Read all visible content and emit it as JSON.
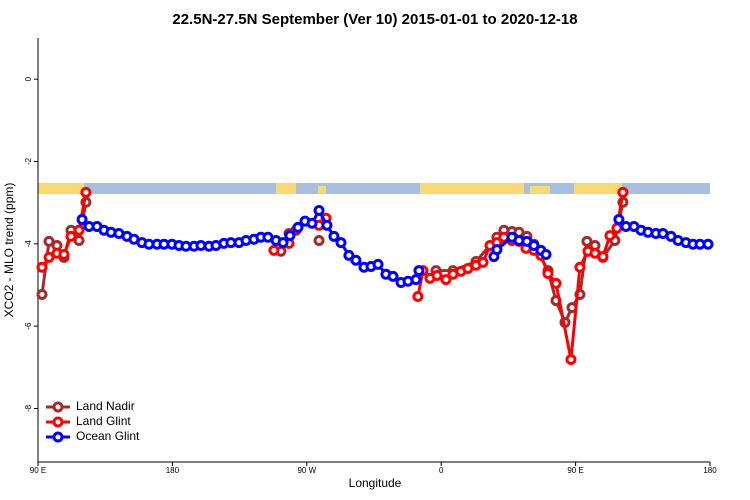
{
  "chart_data": {
    "type": "line",
    "title": "22.5N-27.5N September (Ver 10)   2015-01-01 to 2020-12-18",
    "x_label": "Longitude",
    "y_label": "XCO2 - MLO trend (ppm)",
    "xlim": [
      90,
      540
    ],
    "xticks": [
      {
        "value": 90,
        "label": "90 E"
      },
      {
        "value": 180,
        "label": "180"
      },
      {
        "value": 270,
        "label": "90 W"
      },
      {
        "value": 360,
        "label": "0"
      },
      {
        "value": 450,
        "label": "90 E"
      },
      {
        "value": 540,
        "label": "180"
      }
    ],
    "ylim": [
      -9.3,
      1.0
    ],
    "yticks": [
      0,
      -2,
      -4,
      -6,
      -8
    ],
    "legend": "bottom-left",
    "series": [
      {
        "name": "Land Nadir",
        "color": "#a52a2a",
        "x": [
          92.7,
          97.4,
          102.7,
          107.4,
          112.1,
          117.5,
          122.1,
          200,
          252.7,
          258.1,
          270,
          278.2,
          320,
          356.5,
          367.9,
          383.3,
          397.3,
          402.0,
          407.4,
          412.1,
          417.4,
          422.1,
          431.5,
          436.9,
          442.9,
          447.6,
          452.9,
          457.6,
          463.0,
          468.3,
          476.3,
          481.7
        ],
        "values": [
          -5.23,
          -3.94,
          -4.04,
          -4.33,
          -3.67,
          -3.92,
          -2.99,
          null,
          -4.18,
          -3.75,
          null,
          -3.92,
          null,
          -4.65,
          -4.65,
          -4.43,
          -3.84,
          -3.67,
          -3.7,
          -3.72,
          -3.82,
          -4.01,
          -4.65,
          -5.38,
          -5.91,
          -5.55,
          -5.23,
          -3.94,
          -4.04,
          -4.33,
          -3.92,
          -2.99
        ]
      },
      {
        "name": "Land Glint",
        "color": "#ff0000",
        "x": [
          92.7,
          97.4,
          102.7,
          107.4,
          112.1,
          117.5,
          122.1,
          200,
          248.0,
          258.1,
          262.8,
          270,
          278.2,
          282.9,
          320,
          344.4,
          347.8,
          352.5,
          357.2,
          363.2,
          367.9,
          373.2,
          377.9,
          383.3,
          388.0,
          392.7,
          397.3,
          402.0,
          407.4,
          412.1,
          416.8,
          422.1,
          426.8,
          431.5,
          436.9,
          446.9,
          452.9,
          458.3,
          463.0,
          468.3,
          473.0,
          477.7,
          481.7
        ],
        "values": [
          -4.57,
          -4.33,
          -4.23,
          -4.26,
          -3.82,
          -3.67,
          -2.75,
          null,
          -4.16,
          -3.99,
          -3.67,
          null,
          -3.55,
          -3.38,
          null,
          -5.28,
          -4.65,
          -4.84,
          -4.77,
          -4.87,
          -4.74,
          -4.67,
          -4.6,
          -4.52,
          -4.45,
          -4.04,
          -3.97,
          -3.84,
          -3.92,
          -3.94,
          -4.11,
          -4.16,
          -4.28,
          -4.72,
          -4.96,
          -6.81,
          -4.57,
          -4.18,
          -4.23,
          -4.31,
          -3.8,
          -3.62,
          -2.75
        ]
      },
      {
        "name": "Ocean Glint",
        "color": "#0000ff",
        "x": [
          119.5,
          124.2,
          129.5,
          134.2,
          138.9,
          144.2,
          149.6,
          154.3,
          159.6,
          164.3,
          169.7,
          174.4,
          179.7,
          184.4,
          189.1,
          194.5,
          199.1,
          204.5,
          209.2,
          214.5,
          219.2,
          224.6,
          229.3,
          234.6,
          239.3,
          244.0,
          249.4,
          254.1,
          258.7,
          264.1,
          268.8,
          273.5,
          278.2,
          283.5,
          288.2,
          292.9,
          298.2,
          302.9,
          308.3,
          313.0,
          317.7,
          323.0,
          327.7,
          333.1,
          337.8,
          343.1,
          345.1,
          370,
          395.3,
          397.3,
          407.4,
          412.1,
          417.4,
          422.1,
          426.8,
          430.2,
          455,
          479.0,
          483.7,
          489.1,
          493.8,
          498.5,
          503.8,
          508.5,
          513.9,
          518.6,
          523.9,
          528.6,
          533.3,
          538.7
        ],
        "values": [
          -3.41,
          -3.58,
          -3.58,
          -3.67,
          -3.72,
          -3.75,
          -3.82,
          -3.89,
          -3.97,
          -4.01,
          -4.01,
          -4.01,
          -4.01,
          -4.04,
          -4.06,
          -4.06,
          -4.04,
          -4.06,
          -4.04,
          -3.99,
          -3.97,
          -3.97,
          -3.92,
          -3.89,
          -3.84,
          -3.84,
          -3.92,
          -3.97,
          -3.8,
          -3.6,
          -3.45,
          -3.5,
          -3.19,
          -3.55,
          -3.82,
          -3.97,
          -4.28,
          -4.4,
          -4.57,
          -4.55,
          -4.5,
          -4.74,
          -4.79,
          -4.94,
          -4.91,
          -4.87,
          -4.65,
          null,
          -4.31,
          -4.14,
          -3.84,
          -3.92,
          -3.94,
          -4.04,
          -4.16,
          -4.26,
          null,
          -3.41,
          -3.58,
          -3.58,
          -3.67,
          -3.72,
          -3.75,
          -3.75,
          -3.82,
          -3.92,
          -3.97,
          -4.01,
          -4.01,
          -4.01
        ]
      }
    ]
  }
}
